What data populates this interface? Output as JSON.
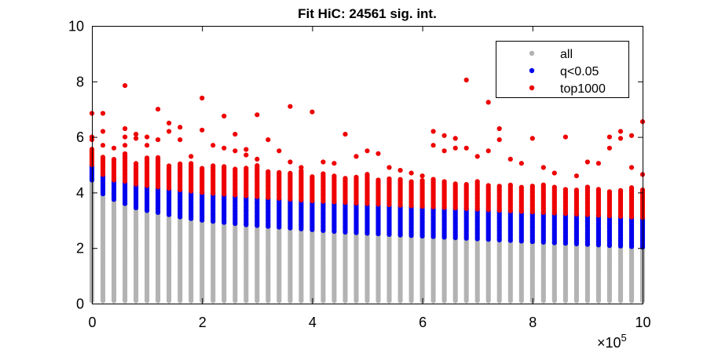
{
  "chart_data": {
    "type": "scatter",
    "title": "Fit HiC: 24561 sig. int.",
    "xlabel": "",
    "ylabel": "",
    "xlim": [
      0,
      1000000
    ],
    "ylim": [
      0,
      10
    ],
    "x_ticks": [
      0,
      200000,
      400000,
      600000,
      800000,
      1000000
    ],
    "x_tick_labels": [
      "0",
      "2",
      "4",
      "6",
      "8",
      "10"
    ],
    "y_ticks": [
      0,
      2,
      4,
      6,
      8,
      10
    ],
    "y_tick_labels": [
      "0",
      "2",
      "4",
      "6",
      "8",
      "10"
    ],
    "x_exponent_label": "×10",
    "x_exponent_power": "5",
    "grid": false,
    "legend_position": "top-right",
    "series": [
      {
        "name": "all",
        "color": "#b3b3b3",
        "x_start": 0,
        "x_step": 20000,
        "bins_low": [
          0.1,
          0.1,
          0.1,
          0.1,
          0.1,
          0.1,
          0.1,
          0.1,
          0.1,
          0.1,
          0.1,
          0.1,
          0.1,
          0.1,
          0.1,
          0.1,
          0.1,
          0.1,
          0.1,
          0.1,
          0.1,
          0.1,
          0.1,
          0.1,
          0.1,
          0.1,
          0.1,
          0.1,
          0.1,
          0.1,
          0.1,
          0.1,
          0.1,
          0.1,
          0.1,
          0.1,
          0.1,
          0.1,
          0.1,
          0.1,
          0.1,
          0.1,
          0.1,
          0.1,
          0.1,
          0.1,
          0.1,
          0.1,
          0.1,
          0.1,
          0.1
        ],
        "bins_high": [
          4.45,
          3.95,
          3.75,
          3.6,
          3.45,
          3.35,
          3.28,
          3.2,
          3.12,
          3.06,
          3.0,
          2.96,
          2.92,
          2.88,
          2.84,
          2.81,
          2.78,
          2.75,
          2.72,
          2.69,
          2.66,
          2.63,
          2.6,
          2.57,
          2.55,
          2.53,
          2.51,
          2.49,
          2.47,
          2.45,
          2.43,
          2.41,
          2.39,
          2.37,
          2.35,
          2.33,
          2.31,
          2.29,
          2.27,
          2.25,
          2.23,
          2.21,
          2.19,
          2.17,
          2.15,
          2.13,
          2.11,
          2.09,
          2.07,
          2.05,
          2.03
        ]
      },
      {
        "name": "q<0.05",
        "color": "#0000ee",
        "x_start": 0,
        "x_step": 20000,
        "bins_low": [
          4.45,
          3.95,
          3.75,
          3.6,
          3.45,
          3.35,
          3.28,
          3.2,
          3.12,
          3.06,
          3.0,
          2.96,
          2.92,
          2.88,
          2.84,
          2.81,
          2.78,
          2.75,
          2.72,
          2.69,
          2.66,
          2.63,
          2.6,
          2.57,
          2.55,
          2.53,
          2.51,
          2.49,
          2.47,
          2.45,
          2.43,
          2.41,
          2.39,
          2.37,
          2.35,
          2.33,
          2.31,
          2.29,
          2.27,
          2.25,
          2.23,
          2.21,
          2.19,
          2.17,
          2.15,
          2.13,
          2.11,
          2.09,
          2.07,
          2.05,
          2.03
        ],
        "bins_high": [
          5.0,
          4.65,
          4.45,
          4.4,
          4.3,
          4.25,
          4.2,
          4.15,
          4.1,
          4.05,
          4.0,
          3.97,
          3.94,
          3.91,
          3.88,
          3.85,
          3.82,
          3.79,
          3.76,
          3.73,
          3.7,
          3.68,
          3.66,
          3.64,
          3.62,
          3.6,
          3.58,
          3.56,
          3.54,
          3.52,
          3.5,
          3.48,
          3.46,
          3.44,
          3.42,
          3.4,
          3.38,
          3.36,
          3.34,
          3.32,
          3.3,
          3.28,
          3.26,
          3.24,
          3.22,
          3.2,
          3.18,
          3.16,
          3.14,
          3.12,
          3.1
        ]
      },
      {
        "name": "top1000",
        "color": "#ee0000",
        "x_start": 0,
        "x_step": 20000,
        "bins_low": [
          5.0,
          4.65,
          4.45,
          4.4,
          4.3,
          4.25,
          4.2,
          4.15,
          4.1,
          4.05,
          4.0,
          3.97,
          3.94,
          3.91,
          3.88,
          3.85,
          3.82,
          3.79,
          3.76,
          3.73,
          3.7,
          3.68,
          3.66,
          3.64,
          3.62,
          3.6,
          3.58,
          3.56,
          3.54,
          3.52,
          3.5,
          3.48,
          3.46,
          3.44,
          3.42,
          3.4,
          3.38,
          3.36,
          3.34,
          3.32,
          3.3,
          3.28,
          3.26,
          3.24,
          3.22,
          3.2,
          3.18,
          3.16,
          3.14,
          3.12,
          3.1
        ],
        "bins_high": [
          5.6,
          5.3,
          5.2,
          5.4,
          5.1,
          5.25,
          5.3,
          5.0,
          5.05,
          5.1,
          4.9,
          5.0,
          4.95,
          4.85,
          4.9,
          5.0,
          4.8,
          4.75,
          4.7,
          4.8,
          4.6,
          4.7,
          4.65,
          4.55,
          4.6,
          4.7,
          4.5,
          4.55,
          4.5,
          4.4,
          4.45,
          4.5,
          4.4,
          4.35,
          4.3,
          4.45,
          4.3,
          4.25,
          4.3,
          4.2,
          4.25,
          4.3,
          4.2,
          4.15,
          4.1,
          4.2,
          4.15,
          4.05,
          4.1,
          4.2,
          4.15
        ],
        "outliers": [
          [
            0,
            6.85
          ],
          [
            0,
            6.0
          ],
          [
            0,
            5.9
          ],
          [
            20000,
            6.85
          ],
          [
            20000,
            6.2
          ],
          [
            20000,
            5.7
          ],
          [
            40000,
            5.6
          ],
          [
            60000,
            7.85
          ],
          [
            60000,
            6.3
          ],
          [
            60000,
            6.0
          ],
          [
            60000,
            5.7
          ],
          [
            80000,
            6.1
          ],
          [
            80000,
            5.95
          ],
          [
            100000,
            6.0
          ],
          [
            100000,
            5.7
          ],
          [
            120000,
            7.0
          ],
          [
            120000,
            5.9
          ],
          [
            140000,
            6.5
          ],
          [
            140000,
            6.2
          ],
          [
            160000,
            6.35
          ],
          [
            160000,
            5.9
          ],
          [
            180000,
            5.3
          ],
          [
            200000,
            7.4
          ],
          [
            200000,
            6.25
          ],
          [
            220000,
            5.7
          ],
          [
            240000,
            6.75
          ],
          [
            240000,
            5.6
          ],
          [
            260000,
            6.1
          ],
          [
            260000,
            5.5
          ],
          [
            280000,
            5.55
          ],
          [
            280000,
            5.35
          ],
          [
            300000,
            6.8
          ],
          [
            300000,
            5.2
          ],
          [
            320000,
            5.9
          ],
          [
            340000,
            5.5
          ],
          [
            360000,
            7.1
          ],
          [
            360000,
            5.1
          ],
          [
            380000,
            4.9
          ],
          [
            400000,
            6.9
          ],
          [
            420000,
            5.1
          ],
          [
            440000,
            5.05
          ],
          [
            460000,
            6.1
          ],
          [
            480000,
            5.3
          ],
          [
            500000,
            5.5
          ],
          [
            520000,
            5.4
          ],
          [
            540000,
            4.9
          ],
          [
            560000,
            4.8
          ],
          [
            580000,
            4.7
          ],
          [
            600000,
            4.6
          ],
          [
            620000,
            6.2
          ],
          [
            620000,
            5.7
          ],
          [
            640000,
            6.05
          ],
          [
            640000,
            5.5
          ],
          [
            660000,
            5.95
          ],
          [
            660000,
            5.6
          ],
          [
            680000,
            8.05
          ],
          [
            680000,
            5.6
          ],
          [
            700000,
            5.3
          ],
          [
            720000,
            7.25
          ],
          [
            720000,
            5.5
          ],
          [
            740000,
            6.3
          ],
          [
            740000,
            5.9
          ],
          [
            760000,
            5.2
          ],
          [
            780000,
            5.05
          ],
          [
            800000,
            5.95
          ],
          [
            820000,
            4.9
          ],
          [
            840000,
            4.7
          ],
          [
            860000,
            6.0
          ],
          [
            880000,
            4.6
          ],
          [
            900000,
            5.1
          ],
          [
            920000,
            5.05
          ],
          [
            940000,
            6.0
          ],
          [
            940000,
            5.6
          ],
          [
            960000,
            6.2
          ],
          [
            960000,
            5.95
          ],
          [
            980000,
            6.05
          ],
          [
            980000,
            4.9
          ],
          [
            1000000,
            6.55
          ],
          [
            1000000,
            4.65
          ]
        ]
      }
    ]
  }
}
